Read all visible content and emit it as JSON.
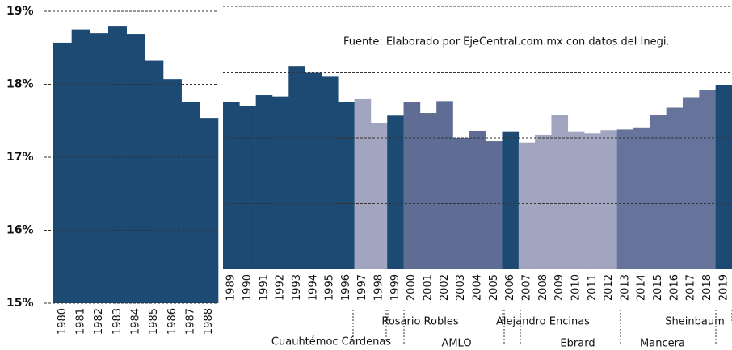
{
  "chart_data": [
    {
      "type": "bar",
      "categories": [
        "1980",
        "1981",
        "1982",
        "1983",
        "1984",
        "1985",
        "1986",
        "1987",
        "1988"
      ],
      "values": [
        18.57,
        18.75,
        18.7,
        18.8,
        18.69,
        18.32,
        18.07,
        17.76,
        17.54
      ],
      "color": "#1d4a73",
      "ylim": [
        15,
        19
      ],
      "yticks": [
        {
          "value": 15,
          "label": "15%"
        },
        {
          "value": 16,
          "label": "16%"
        },
        {
          "value": 17,
          "label": "17%"
        },
        {
          "value": 18,
          "label": "18%"
        },
        {
          "value": 19,
          "label": "19%"
        }
      ],
      "grid": true
    },
    {
      "type": "bar",
      "categories": [
        "1989",
        "1990",
        "1991",
        "1992",
        "1993",
        "1994",
        "1995",
        "1996",
        "1997",
        "1998",
        "1999",
        "2000",
        "2001",
        "2002",
        "2003",
        "2004",
        "2005",
        "2006",
        "2007",
        "2008",
        "2009",
        "2010",
        "2011",
        "2012",
        "2013",
        "2014",
        "2015",
        "2016",
        "2017",
        "2018",
        "2019"
      ],
      "values": [
        17.55,
        17.49,
        17.65,
        17.63,
        18.09,
        18.0,
        17.94,
        17.54,
        17.59,
        17.23,
        17.34,
        17.54,
        17.38,
        17.56,
        17.0,
        17.1,
        16.95,
        17.09,
        16.93,
        17.05,
        17.35,
        17.09,
        17.07,
        17.12,
        17.13,
        17.15,
        17.35,
        17.46,
        17.62,
        17.73,
        17.8
      ],
      "colors": [
        "#1d4a73",
        "#1d4a73",
        "#1d4a73",
        "#1d4a73",
        "#1d4a73",
        "#1d4a73",
        "#1d4a73",
        "#1d4a73",
        "#a1a5bf",
        "#a1a5bf",
        "#1d4a73",
        "#5f6d94",
        "#5f6d94",
        "#5f6d94",
        "#5f6d94",
        "#5f6d94",
        "#5f6d94",
        "#1d4a73",
        "#a1a5bf",
        "#a1a5bf",
        "#a1a5bf",
        "#a1a5bf",
        "#a1a5bf",
        "#a1a5bf",
        "#66739a",
        "#66739a",
        "#66739a",
        "#66739a",
        "#66739a",
        "#66739a",
        "#1d4a73"
      ],
      "ylim": [
        15,
        19
      ],
      "yticks": [
        16,
        17,
        18,
        19
      ],
      "grid": true,
      "source": "Fuente: Elaborado por EjeCentral.com.mx con datos del Inegi.",
      "annotations": [
        "Cuauhtémoc Cárdenas",
        "Rosario Robles",
        "AMLO",
        "Alejandro Encinas",
        "Ebrard",
        "Mancera",
        "Sheinbaum"
      ]
    }
  ]
}
